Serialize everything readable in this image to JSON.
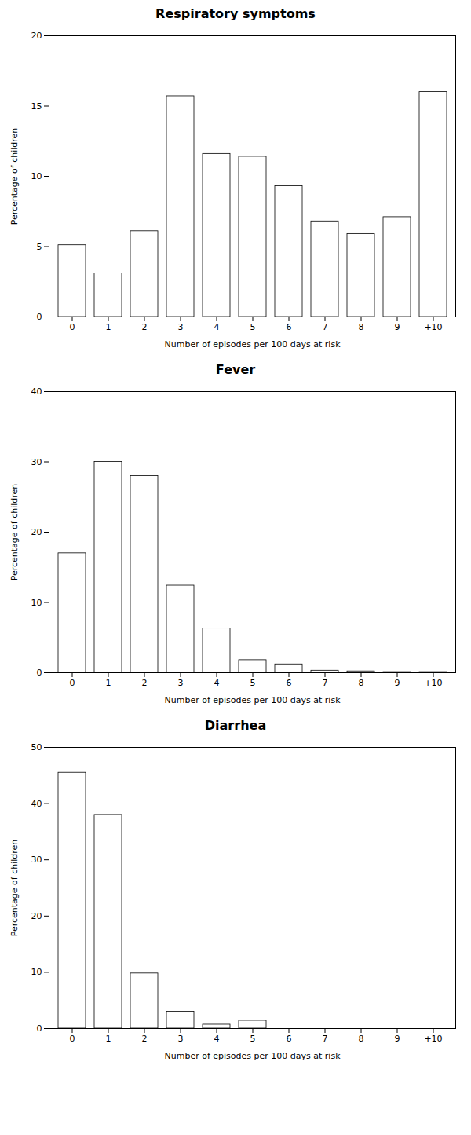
{
  "chart_data": [
    {
      "type": "bar",
      "title": "Respiratory symptoms",
      "categories": [
        "0",
        "1",
        "2",
        "3",
        "4",
        "5",
        "6",
        "7",
        "8",
        "9",
        "+10"
      ],
      "values": [
        5.1,
        3.1,
        6.1,
        15.7,
        11.6,
        11.4,
        9.3,
        6.8,
        5.9,
        7.1,
        16.0
      ],
      "xlabel": "Number of episodes per 100 days at risk",
      "ylabel": "Percentage of children",
      "color": "#ffffff",
      "ylim": [
        0,
        20
      ],
      "yticks": [
        0,
        5,
        10,
        15,
        20
      ]
    },
    {
      "type": "bar",
      "title": "Fever",
      "categories": [
        "0",
        "1",
        "2",
        "3",
        "4",
        "5",
        "6",
        "7",
        "8",
        "9",
        "+10"
      ],
      "values": [
        17.0,
        30.0,
        28.0,
        12.4,
        6.3,
        1.8,
        1.2,
        0.3,
        0.2,
        0.1,
        0.1
      ],
      "xlabel": "Number of episodes per 100 days at risk",
      "ylabel": "Percentage of children",
      "color": "#ffffff",
      "ylim": [
        0,
        40
      ],
      "yticks": [
        0,
        10,
        20,
        30,
        40
      ]
    },
    {
      "type": "bar",
      "title": "Diarrhea",
      "categories": [
        "0",
        "1",
        "2",
        "3",
        "4",
        "5",
        "6",
        "7",
        "8",
        "9",
        "+10"
      ],
      "values": [
        45.5,
        38.0,
        9.8,
        3.0,
        0.7,
        1.4,
        0.0,
        0.0,
        0.0,
        0.0,
        0.0
      ],
      "xlabel": "Number of episodes per 100 days at risk",
      "ylabel": "Percentage of children",
      "color": "#ffffff",
      "ylim": [
        0,
        50
      ],
      "yticks": [
        0,
        10,
        20,
        30,
        40,
        50
      ]
    }
  ]
}
